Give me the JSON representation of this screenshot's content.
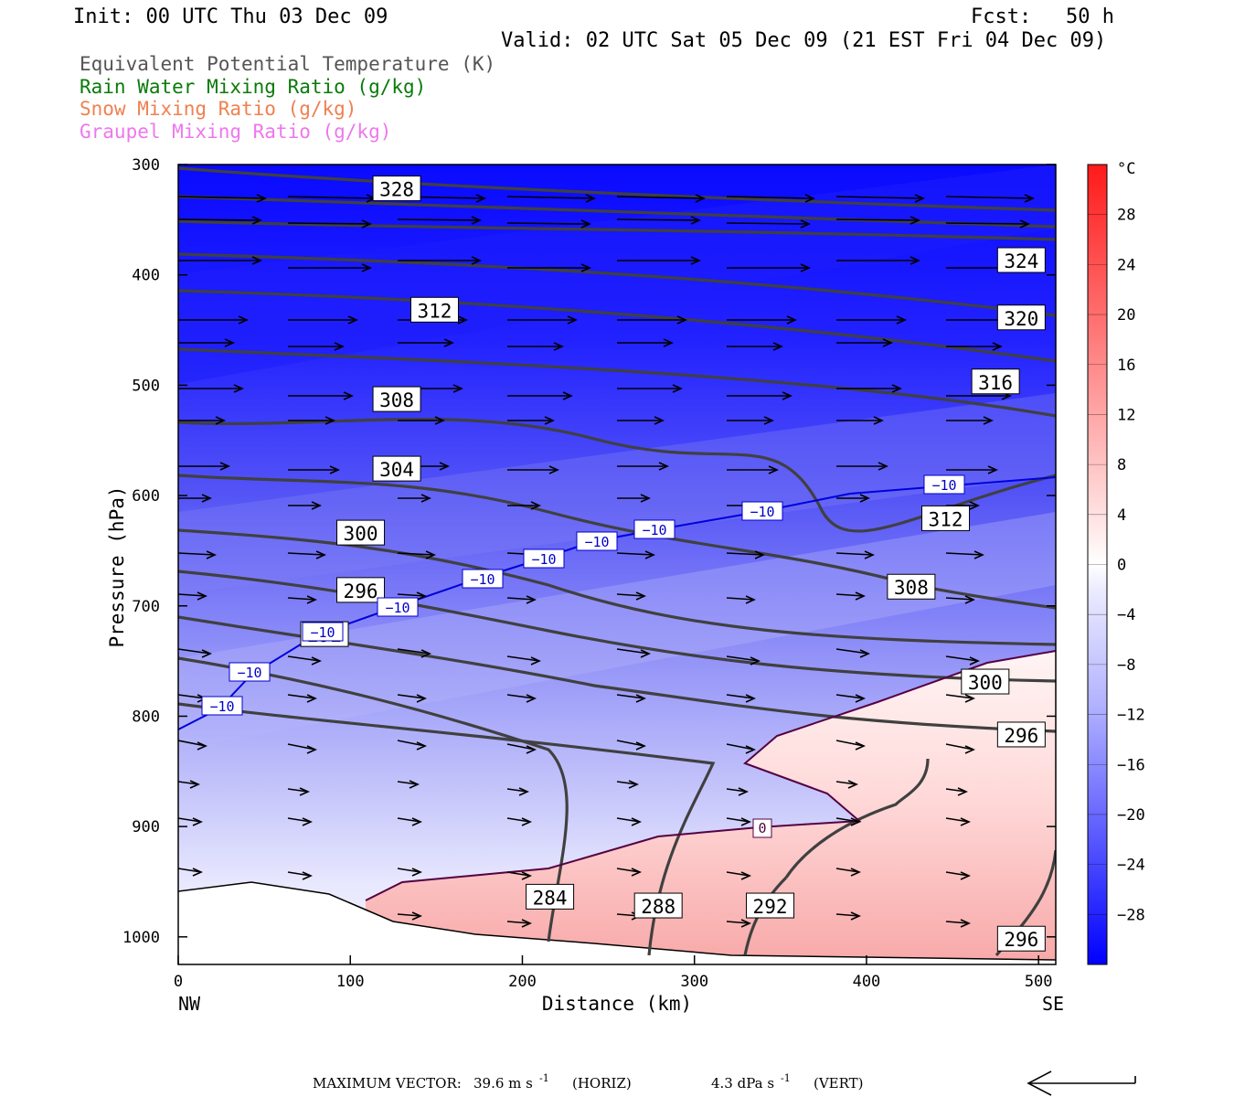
{
  "header": {
    "init": "Init: 00 UTC Thu 03 Dec 09",
    "fcst_label": "Fcst:",
    "fcst_value": "50 h",
    "valid": "Valid: 02 UTC Sat 05 Dec 09 (21 EST Fri 04 Dec 09)"
  },
  "legend": [
    {
      "label": "Equivalent Potential Temperature (K)",
      "color": "#555555"
    },
    {
      "label": "Rain Water Mixing Ratio (g/kg)",
      "color": "#0a7a0a"
    },
    {
      "label": "Snow Mixing Ratio (g/kg)",
      "color": "#f08050"
    },
    {
      "label": "Graupel Mixing Ratio (g/kg)",
      "color": "#ee77ee"
    }
  ],
  "footer": {
    "max_vector_label": "MAXIMUM VECTOR:",
    "horiz_value": "39.6 m s",
    "horiz_exp": "-1",
    "horiz_suffix": "(HORIZ)",
    "vert_value": "4.3 dPa s",
    "vert_exp": "-1",
    "vert_suffix": "(VERT)"
  },
  "chart_data": {
    "type": "cross-section",
    "xlabel": "Distance (km)",
    "ylabel": "Pressure (hPa)",
    "x_end_labels": {
      "left": "NW",
      "right": "SE"
    },
    "xlim": [
      0,
      510
    ],
    "ylim": [
      300,
      1025
    ],
    "y_scale": "linear (pressure, inverted)",
    "x_ticks": [
      0,
      100,
      200,
      300,
      400,
      500
    ],
    "y_ticks": [
      300,
      400,
      500,
      600,
      700,
      800,
      900,
      1000
    ],
    "shading": {
      "variable": "Temperature",
      "unit": "°C",
      "colorbar_ticks": [
        28,
        24,
        20,
        16,
        12,
        8,
        4,
        0,
        -4,
        -8,
        -12,
        -16,
        -20,
        -24,
        -28
      ],
      "range": [
        -32,
        32
      ],
      "colors": {
        "cold": "#0000ff",
        "zero": "#ffffff",
        "warm": "#ff0000"
      }
    },
    "theta_e_contours": {
      "color": "#404040",
      "labels": [
        {
          "text": "328",
          "x": 127,
          "p": 322
        },
        {
          "text": "324",
          "x": 490,
          "p": 387
        },
        {
          "text": "320",
          "x": 490,
          "p": 439
        },
        {
          "text": "316",
          "x": 475,
          "p": 497
        },
        {
          "text": "312",
          "x": 149,
          "p": 432
        },
        {
          "text": "312",
          "x": 446,
          "p": 621
        },
        {
          "text": "308",
          "x": 127,
          "p": 513
        },
        {
          "text": "308",
          "x": 426,
          "p": 683
        },
        {
          "text": "304",
          "x": 127,
          "p": 576
        },
        {
          "text": "300",
          "x": 106,
          "p": 634
        },
        {
          "text": "300",
          "x": 469,
          "p": 769
        },
        {
          "text": "296",
          "x": 106,
          "p": 686
        },
        {
          "text": "296",
          "x": 490,
          "p": 817
        },
        {
          "text": "296",
          "x": 490,
          "p": 1002
        },
        {
          "text": "292",
          "x": 85,
          "p": 726
        },
        {
          "text": "292",
          "x": 344,
          "p": 972
        },
        {
          "text": "288",
          "x": 279,
          "p": 972
        },
        {
          "text": "284",
          "x": 216,
          "p": 964
        }
      ]
    },
    "isotherm_contours": [
      {
        "value": -10,
        "color": "#0000cc",
        "labels": [
          "-10",
          "-10",
          "-10",
          "-10",
          "-10",
          "-10",
          "-10",
          "-10",
          "-10",
          "-10"
        ]
      },
      {
        "value": 0,
        "color": "#550044",
        "labels": [
          "0"
        ]
      }
    ],
    "wind_vectors": "horizontal/vertical circulation vectors, generally NW→SE flow (eastward)"
  }
}
